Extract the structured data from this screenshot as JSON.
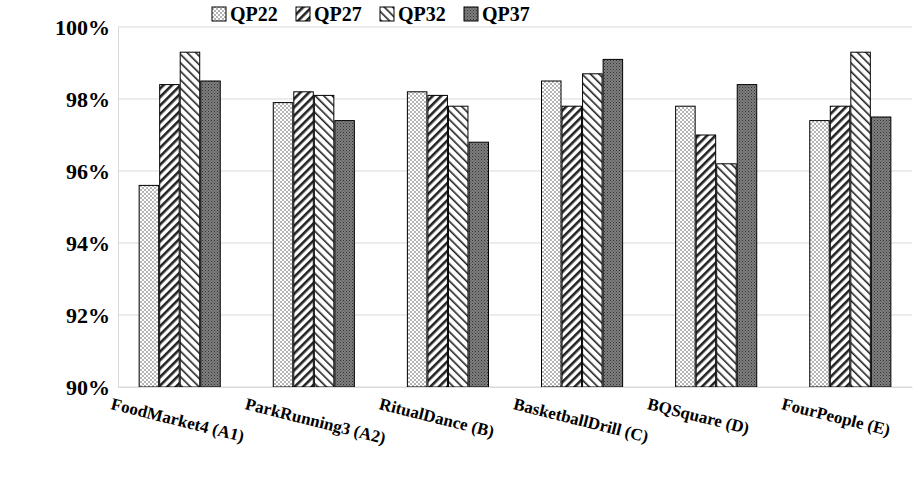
{
  "chart_data": {
    "type": "bar",
    "categories": [
      "FoodMarket4 (A1)",
      "ParkRunning3 (A2)",
      "RitualDance (B)",
      "BasketballDrill (C)",
      "BQSquare (D)",
      "FourPeople (E)"
    ],
    "series": [
      {
        "name": "QP22",
        "color": "#ffffff",
        "values": [
          95.6,
          97.9,
          98.2,
          98.5,
          97.8,
          97.4
        ]
      },
      {
        "name": "QP27",
        "color": "#ffffff",
        "values": [
          98.4,
          98.2,
          98.1,
          97.8,
          97.0,
          97.8
        ]
      },
      {
        "name": "QP32",
        "color": "#ffffff",
        "values": [
          99.3,
          98.1,
          97.8,
          98.7,
          96.2,
          99.3
        ]
      },
      {
        "name": "QP37",
        "color": "#7f7f7f",
        "values": [
          98.5,
          97.4,
          96.8,
          99.1,
          98.4,
          97.5
        ]
      }
    ],
    "ylim": [
      90,
      100
    ],
    "yticks": [
      {
        "value": 90,
        "label": "90%"
      },
      {
        "value": 92,
        "label": "92%"
      },
      {
        "value": 94,
        "label": "94%"
      },
      {
        "value": 96,
        "label": "96%"
      },
      {
        "value": 98,
        "label": "98%"
      },
      {
        "value": 100,
        "label": "100%"
      }
    ],
    "grid": true,
    "legend": "top"
  }
}
